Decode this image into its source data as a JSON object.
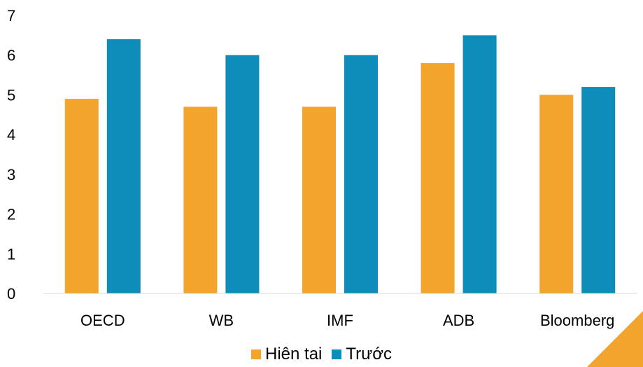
{
  "chart_data": {
    "type": "bar",
    "categories": [
      "OECD",
      "WB",
      "IMF",
      "ADB",
      "Bloomberg"
    ],
    "series": [
      {
        "name": "Hiên tai",
        "color": "#F2A42C",
        "values": [
          4.9,
          4.7,
          4.7,
          5.8,
          5.0
        ]
      },
      {
        "name": "Trước",
        "color": "#0E8DBA",
        "values": [
          6.4,
          6.0,
          6.0,
          6.5,
          5.2
        ]
      }
    ],
    "ylim": [
      0,
      7
    ],
    "yticks": [
      "0",
      "1",
      "2",
      "3",
      "4",
      "5",
      "6",
      "7"
    ],
    "grid": false,
    "legend_position": "bottom"
  }
}
